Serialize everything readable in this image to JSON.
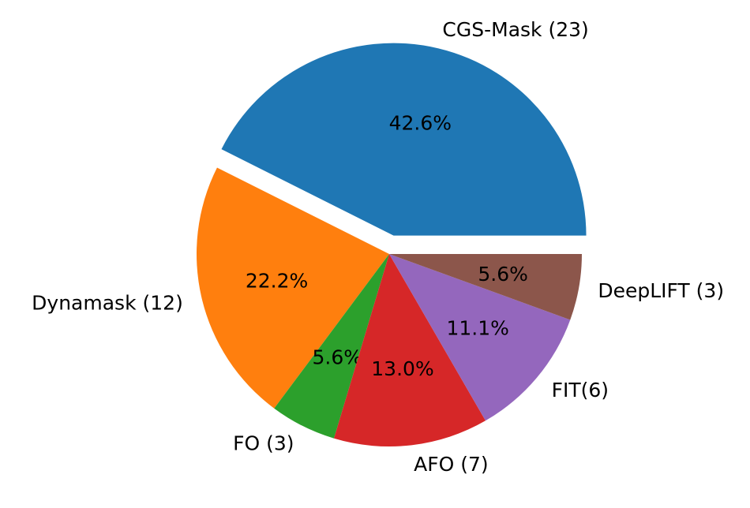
{
  "chart_data": {
    "type": "pie",
    "title": "",
    "autopct_format": "percent_1dp",
    "start_angle_deg": 0,
    "direction": "counterclockwise",
    "slices": [
      {
        "label": "CGS-Mask (23)",
        "value": 23,
        "pct_label": "42.6%",
        "color": "#1f77b4",
        "exploded": true
      },
      {
        "label": "Dynamask (12)",
        "value": 12,
        "pct_label": "22.2%",
        "color": "#ff7f0e",
        "exploded": false
      },
      {
        "label": "FO (3)",
        "value": 3,
        "pct_label": "5.6%",
        "color": "#2ca02c",
        "exploded": false
      },
      {
        "label": "AFO (7)",
        "value": 7,
        "pct_label": "13.0%",
        "color": "#d62728",
        "exploded": false
      },
      {
        "label": "FIT(6)",
        "value": 6,
        "pct_label": "11.1%",
        "color": "#9467bd",
        "exploded": false
      },
      {
        "label": "DeepLIFT (3)",
        "value": 3,
        "pct_label": "5.6%",
        "color": "#8c564b",
        "exploded": false
      }
    ]
  }
}
